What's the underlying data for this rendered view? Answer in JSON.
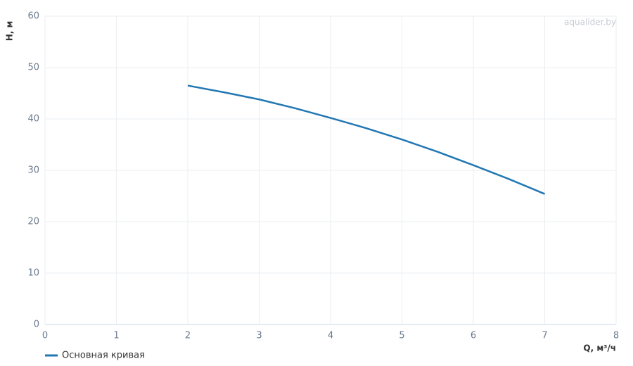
{
  "chart_data": {
    "type": "line",
    "watermark": "aqualider.by",
    "x_label": "Q, м³/ч",
    "y_label": "H, м",
    "x": [
      2,
      2.5,
      3,
      3.5,
      4,
      4.5,
      5,
      5.5,
      6,
      6.5,
      7
    ],
    "series": [
      {
        "name": "Основная кривая",
        "color": "#2277b3",
        "values": [
          46.5,
          45.2,
          43.8,
          42.1,
          40.2,
          38.2,
          36,
          33.6,
          31,
          28.3,
          25.4
        ]
      }
    ],
    "xlim": [
      0,
      8
    ],
    "xticks": [
      0,
      1,
      2,
      3,
      4,
      5,
      6,
      7,
      8
    ],
    "ylim": [
      0,
      60
    ],
    "yticks": [
      0,
      10,
      20,
      30,
      40,
      50,
      60
    ],
    "grid": true
  }
}
